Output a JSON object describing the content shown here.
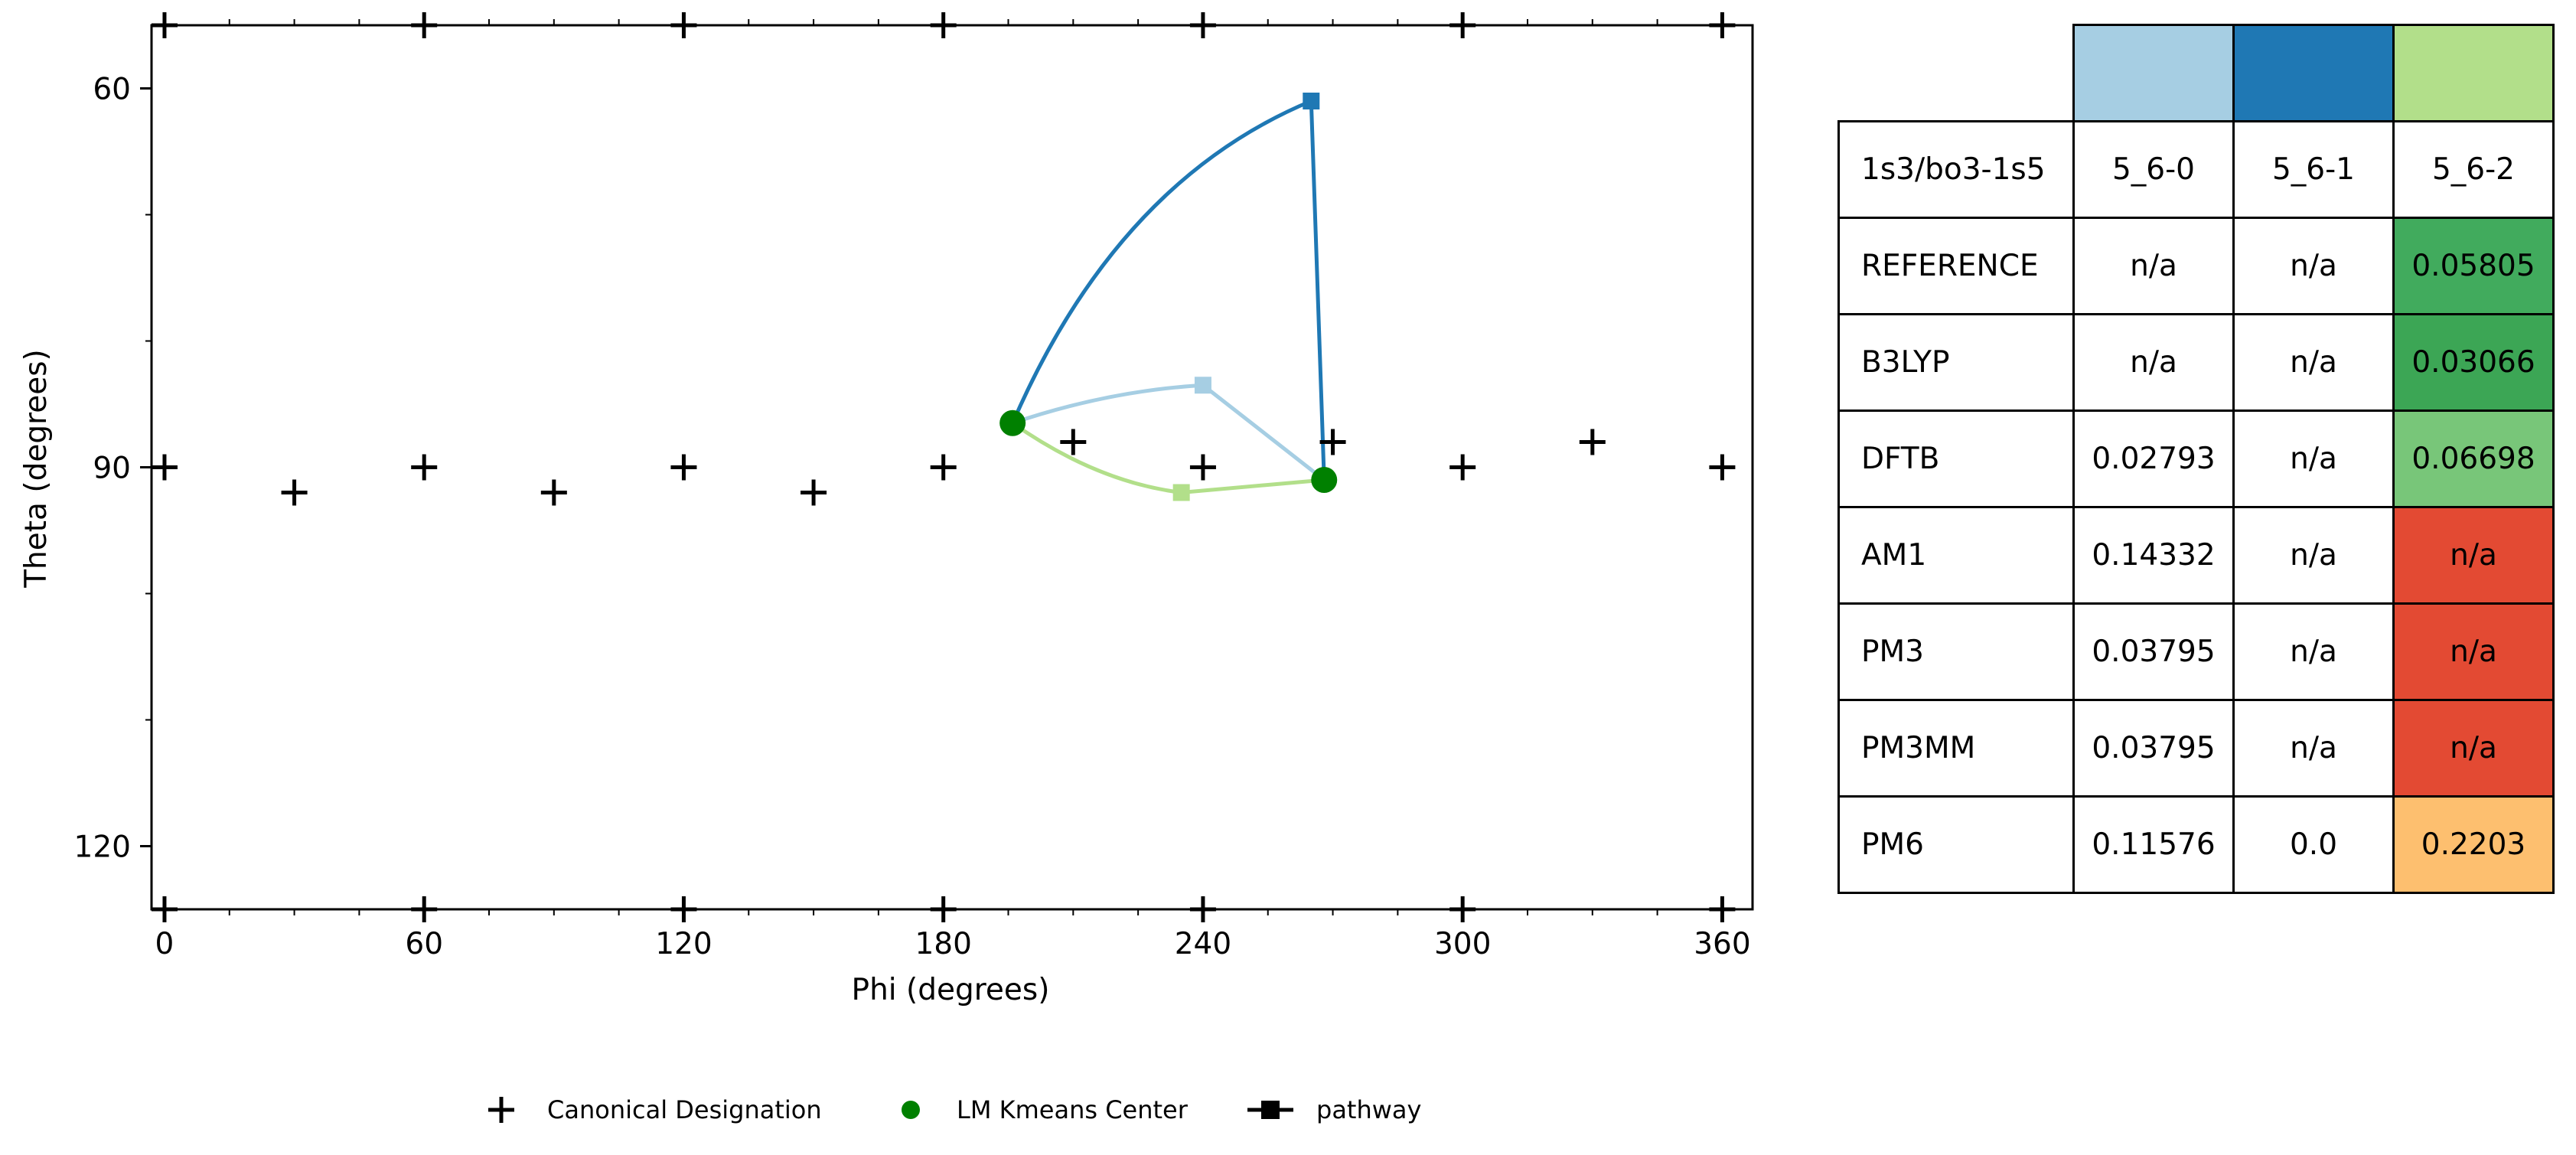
{
  "chart_data": {
    "type": "scatter",
    "xlabel": "Phi (degrees)",
    "ylabel": "Theta (degrees)",
    "xlim": [
      -3,
      367
    ],
    "ylim": [
      125,
      55
    ],
    "x_ticks": [
      0,
      60,
      120,
      180,
      240,
      300,
      360
    ],
    "y_ticks": [
      60,
      90,
      120
    ],
    "legend": [
      {
        "label": "Canonical Designation",
        "marker": "plus"
      },
      {
        "label": "LM Kmeans Center",
        "marker": "circle"
      },
      {
        "label": "pathway",
        "marker": "line-square"
      }
    ],
    "canonical_designations": [
      {
        "phi": 0,
        "theta": 90
      },
      {
        "phi": 30,
        "theta": 92
      },
      {
        "phi": 60,
        "theta": 90
      },
      {
        "phi": 90,
        "theta": 92
      },
      {
        "phi": 120,
        "theta": 90
      },
      {
        "phi": 150,
        "theta": 92
      },
      {
        "phi": 180,
        "theta": 90
      },
      {
        "phi": 210,
        "theta": 88
      },
      {
        "phi": 240,
        "theta": 90
      },
      {
        "phi": 270,
        "theta": 88
      },
      {
        "phi": 300,
        "theta": 90
      },
      {
        "phi": 330,
        "theta": 88
      },
      {
        "phi": 360,
        "theta": 90
      },
      {
        "phi": 0,
        "theta": 0
      },
      {
        "phi": 60,
        "theta": 0
      },
      {
        "phi": 120,
        "theta": 0
      },
      {
        "phi": 180,
        "theta": 0
      },
      {
        "phi": 240,
        "theta": 0
      },
      {
        "phi": 300,
        "theta": 0
      },
      {
        "phi": 360,
        "theta": 0
      },
      {
        "phi": 0,
        "theta": 180
      },
      {
        "phi": 60,
        "theta": 180
      },
      {
        "phi": 120,
        "theta": 180
      },
      {
        "phi": 180,
        "theta": 180
      },
      {
        "phi": 240,
        "theta": 180
      },
      {
        "phi": 300,
        "theta": 180
      },
      {
        "phi": 360,
        "theta": 180
      }
    ],
    "kmeans_centers": [
      {
        "phi": 196,
        "theta": 86.5
      },
      {
        "phi": 268,
        "theta": 91
      }
    ],
    "pathways": [
      {
        "color": "#a6cee3",
        "points": [
          {
            "phi": 196,
            "theta": 86.5
          },
          {
            "phi": 240,
            "theta": 83.5
          },
          {
            "phi": 268,
            "theta": 91
          }
        ]
      },
      {
        "color": "#1f78b4",
        "points": [
          {
            "phi": 196,
            "theta": 86.5
          },
          {
            "phi": 265,
            "theta": 61
          },
          {
            "phi": 268,
            "theta": 91
          }
        ]
      },
      {
        "color": "#b2df8a",
        "points": [
          {
            "phi": 196,
            "theta": 86.5
          },
          {
            "phi": 235,
            "theta": 92
          },
          {
            "phi": 268,
            "theta": 91
          }
        ]
      }
    ]
  },
  "table": {
    "header_colors": [
      "#a6cee3",
      "#1f78b4",
      "#b2df8a"
    ],
    "header_row": [
      "1s3/bo3-1s5",
      "5_6-0",
      "5_6-1",
      "5_6-2"
    ],
    "rows": [
      {
        "method": "REFERENCE",
        "values": [
          "n/a",
          "n/a",
          "0.05805"
        ],
        "colors": [
          "#ffffff",
          "#ffffff",
          "#41ab5d"
        ]
      },
      {
        "method": "B3LYP",
        "values": [
          "n/a",
          "n/a",
          "0.03066"
        ],
        "colors": [
          "#ffffff",
          "#ffffff",
          "#3ca655"
        ]
      },
      {
        "method": "DFTB",
        "values": [
          "0.02793",
          "n/a",
          "0.06698"
        ],
        "colors": [
          "#ffffff",
          "#ffffff",
          "#78c679"
        ]
      },
      {
        "method": "AM1",
        "values": [
          "0.14332",
          "n/a",
          "n/a"
        ],
        "colors": [
          "#ffffff",
          "#ffffff",
          "#e34a33"
        ]
      },
      {
        "method": "PM3",
        "values": [
          "0.03795",
          "n/a",
          "n/a"
        ],
        "colors": [
          "#ffffff",
          "#ffffff",
          "#e34a33"
        ]
      },
      {
        "method": "PM3MM",
        "values": [
          "0.03795",
          "n/a",
          "n/a"
        ],
        "colors": [
          "#ffffff",
          "#ffffff",
          "#e34a33"
        ]
      },
      {
        "method": "PM6",
        "values": [
          "0.11576",
          "0.0",
          "0.2203"
        ],
        "colors": [
          "#ffffff",
          "#ffffff",
          "#fdbf6f"
        ]
      }
    ]
  }
}
